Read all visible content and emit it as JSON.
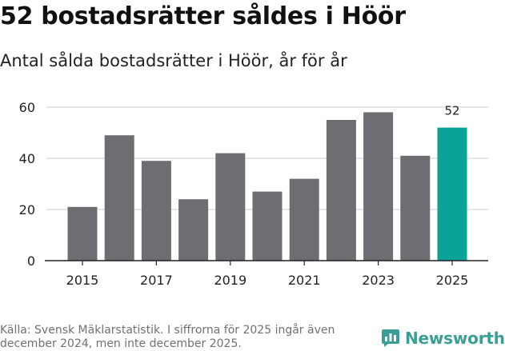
{
  "header": {
    "title": "52 bostadsrätter såldes i Höör",
    "subtitle": "Antal sålda bostadsrätter i Höör, år för år"
  },
  "footer": {
    "source": "Källa: Svensk Mäklarstatistik. I siffrorna för 2025 ingår även december 2024, men inte december 2025.",
    "logo_text": "Newsworthy"
  },
  "colors": {
    "bar": "#6e6d71",
    "highlight": "#0aa398",
    "grid": "#d8d8d8",
    "axis": "#222222",
    "brand": "#3a9e96"
  },
  "chart_data": {
    "type": "bar",
    "categories": [
      "2015",
      "2016",
      "2017",
      "2018",
      "2019",
      "2020",
      "2021",
      "2022",
      "2023",
      "2024",
      "2025"
    ],
    "values": [
      21,
      49,
      39,
      24,
      42,
      27,
      32,
      55,
      58,
      41,
      52
    ],
    "highlight_index": 10,
    "highlight_label": "52",
    "x_tick_labels": [
      "2015",
      "2017",
      "2019",
      "2021",
      "2023",
      "2025"
    ],
    "y_ticks": [
      0,
      20,
      40,
      60
    ],
    "ylim": [
      0,
      60
    ],
    "grid": true,
    "title": "52 bostadsrätter såldes i Höör",
    "subtitle": "Antal sålda bostadsrätter i Höör, år för år",
    "xlabel": "",
    "ylabel": ""
  }
}
